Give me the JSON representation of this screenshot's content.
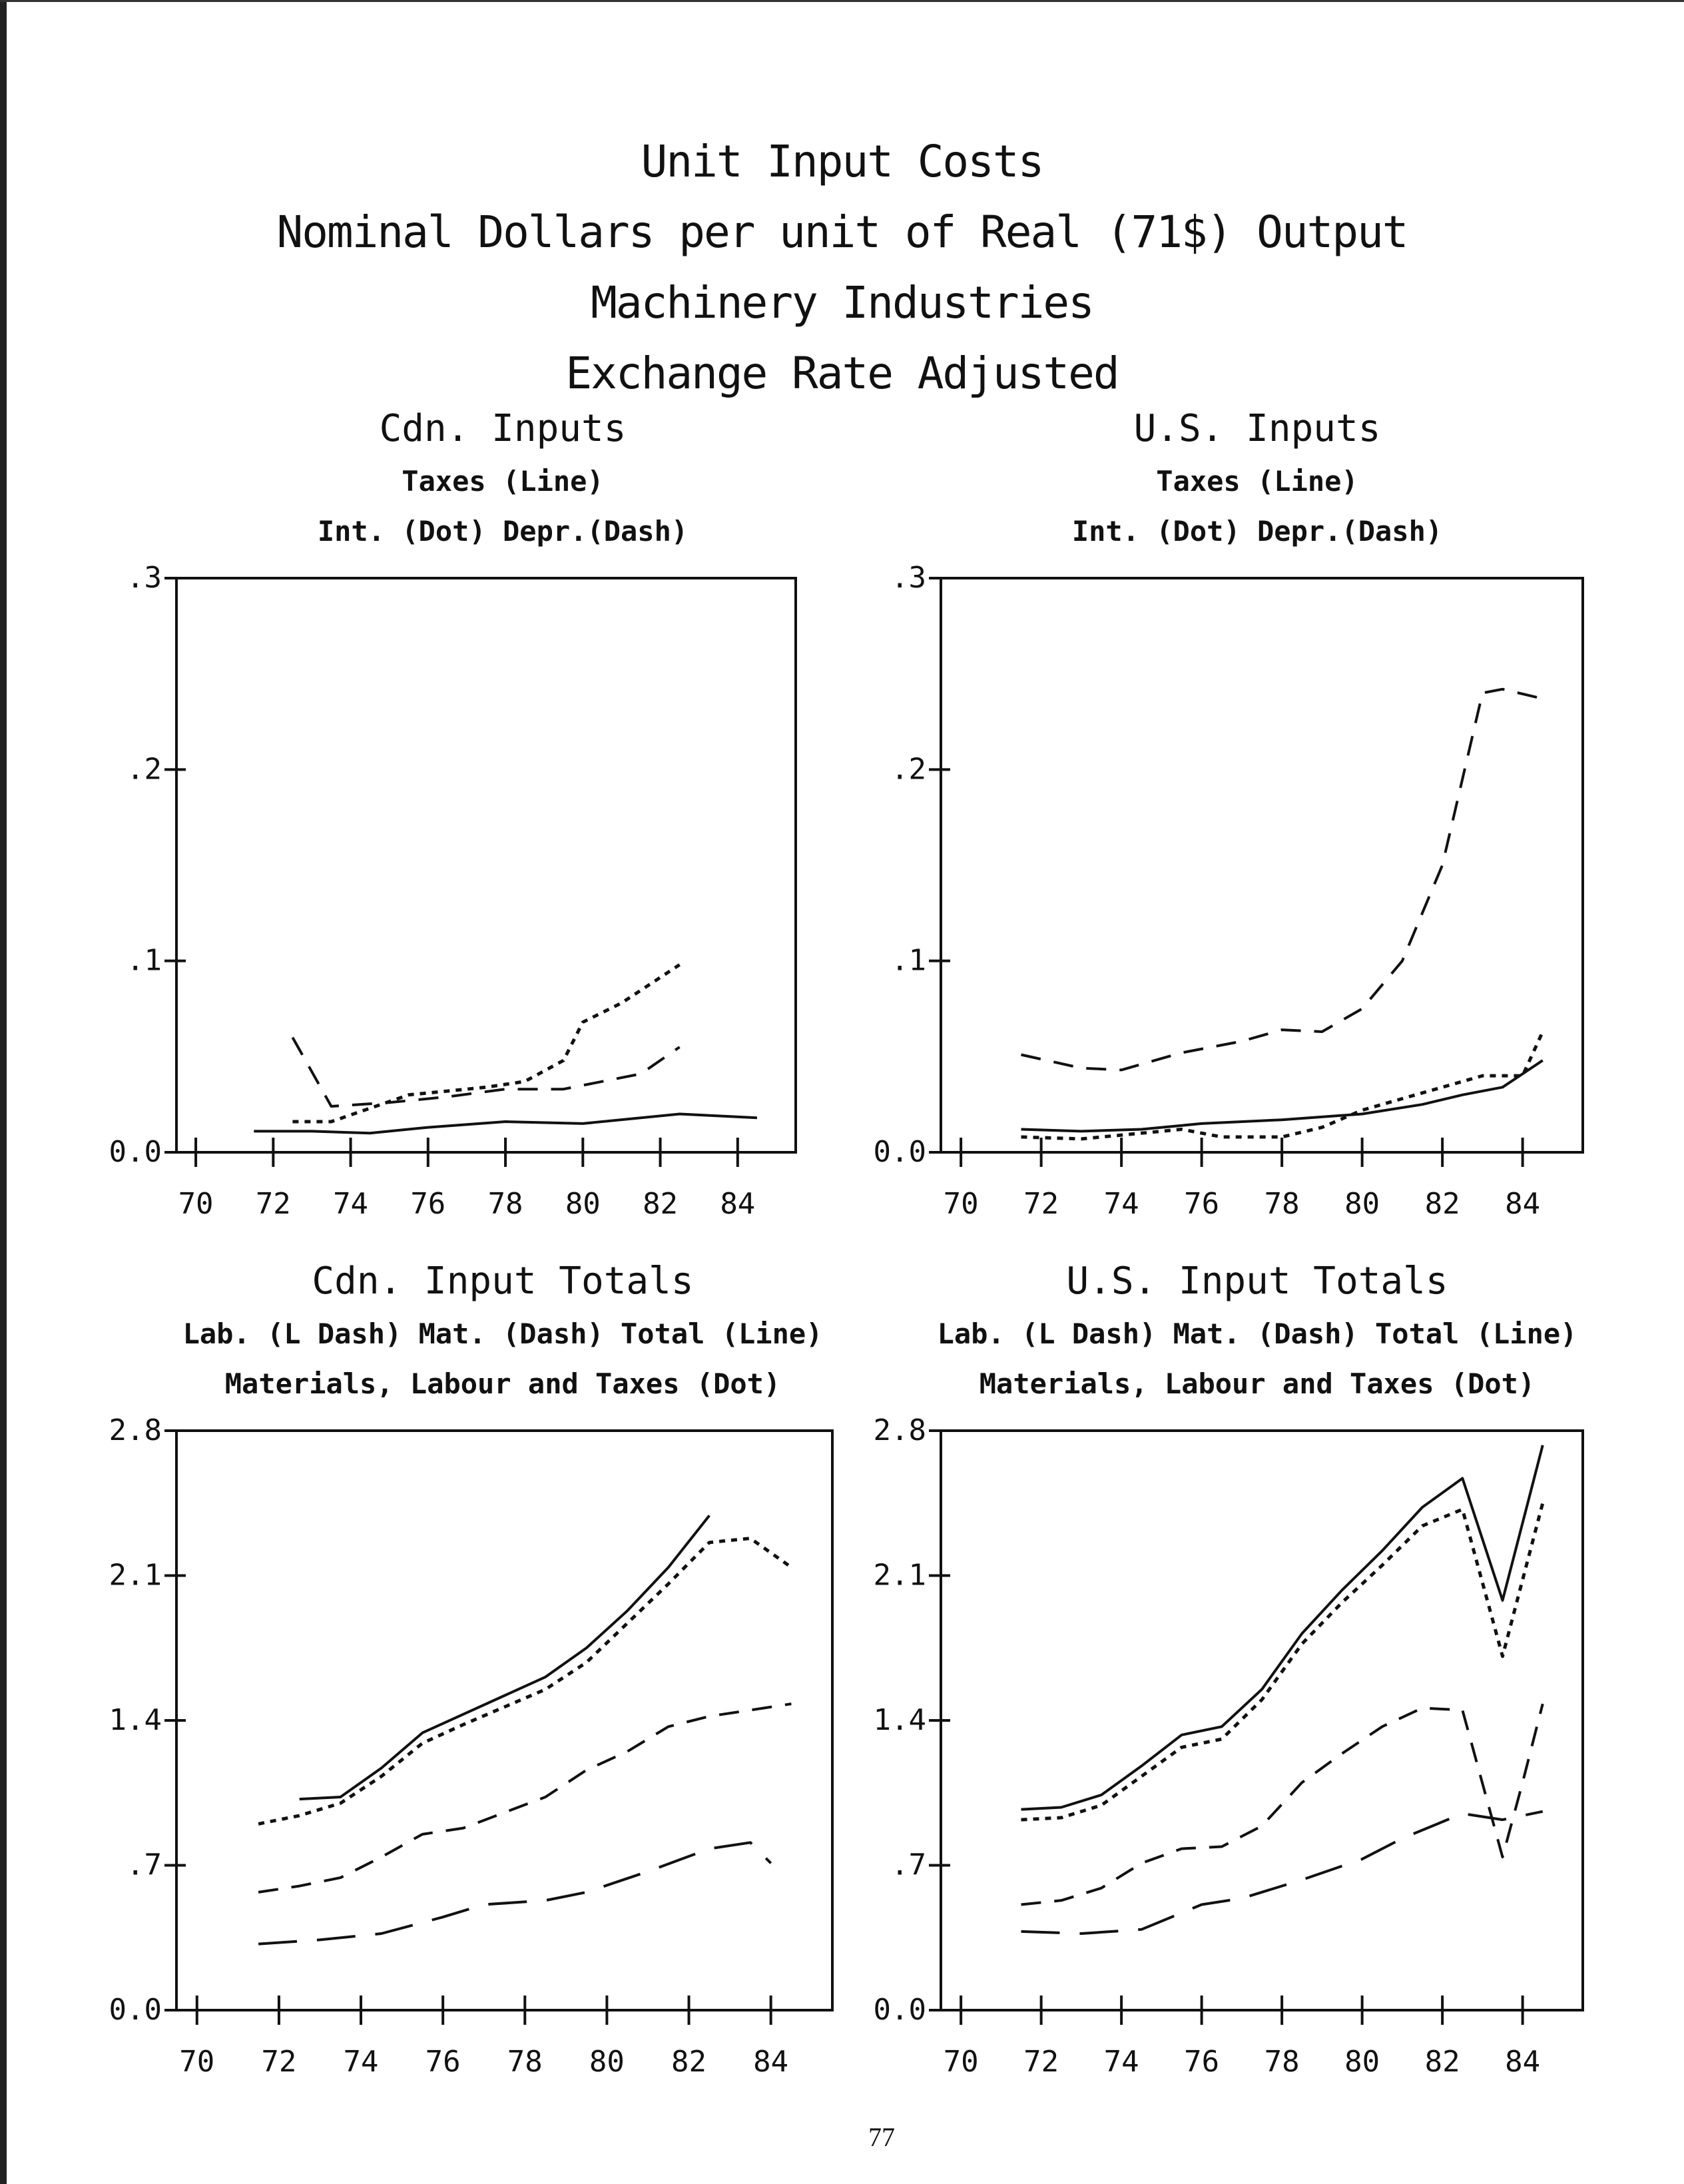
{
  "title_lines": [
    "Unit Input Costs",
    "Nominal Dollars per unit of Real (71$) Output",
    "Machinery Industries",
    "Exchange Rate Adjusted"
  ],
  "page_number": "77",
  "colors": {
    "ink": "#111111"
  },
  "chart_data": [
    {
      "type": "line",
      "title": "Cdn. Inputs",
      "legend_lines": [
        "Taxes (Line)",
        "Int. (Dot)      Depr.(Dash)"
      ],
      "xlabel": "",
      "ylabel": "",
      "xlim": [
        69.5,
        85.5
      ],
      "ylim": [
        0,
        0.3
      ],
      "xticks": [
        "70",
        "72",
        "74",
        "76",
        "78",
        "80",
        "82",
        "84"
      ],
      "yticks": [
        "0.0",
        ".1",
        ".2",
        ".3"
      ],
      "series": [
        {
          "name": "Taxes",
          "style": "solid",
          "x": [
            71.5,
            73,
            74.5,
            76,
            78,
            80,
            82.5,
            84.5
          ],
          "y": [
            0.011,
            0.011,
            0.01,
            0.013,
            0.016,
            0.015,
            0.02,
            0.018
          ]
        },
        {
          "name": "Int.",
          "style": "dot",
          "x": [
            72.5,
            73.5,
            74.5,
            75.5,
            76.5,
            77.5,
            78.5,
            79.5,
            80,
            81,
            82.5
          ],
          "y": [
            0.016,
            0.016,
            0.023,
            0.03,
            0.032,
            0.034,
            0.037,
            0.048,
            0.068,
            0.078,
            0.098
          ]
        },
        {
          "name": "Depr.",
          "style": "dash",
          "x": [
            72.5,
            73.5,
            75,
            76.5,
            78,
            79.5,
            81.5,
            82.5
          ],
          "y": [
            0.06,
            0.024,
            0.026,
            0.029,
            0.033,
            0.033,
            0.041,
            0.055
          ]
        }
      ]
    },
    {
      "type": "line",
      "title": "U.S. Inputs",
      "legend_lines": [
        "Taxes (Line)",
        "Int. (Dot)      Depr.(Dash)"
      ],
      "xlabel": "",
      "ylabel": "",
      "xlim": [
        69.5,
        85.5
      ],
      "ylim": [
        0,
        0.3
      ],
      "xticks": [
        "70",
        "72",
        "74",
        "76",
        "78",
        "80",
        "82",
        "84"
      ],
      "yticks": [
        "0.0",
        ".1",
        ".2",
        ".3"
      ],
      "series": [
        {
          "name": "Taxes",
          "style": "solid",
          "x": [
            71.5,
            73,
            74.5,
            76,
            78,
            80,
            81.5,
            82.5,
            83.5,
            84.5
          ],
          "y": [
            0.012,
            0.011,
            0.012,
            0.015,
            0.017,
            0.02,
            0.025,
            0.03,
            0.034,
            0.048
          ]
        },
        {
          "name": "Int.",
          "style": "dot",
          "x": [
            71.5,
            73,
            74.5,
            75.5,
            76.5,
            78,
            79,
            80,
            81,
            82,
            83,
            84,
            84.5
          ],
          "y": [
            0.008,
            0.007,
            0.01,
            0.012,
            0.008,
            0.008,
            0.013,
            0.022,
            0.028,
            0.034,
            0.04,
            0.04,
            0.063
          ]
        },
        {
          "name": "Depr.",
          "style": "dash",
          "x": [
            71.5,
            73,
            74,
            75.5,
            77,
            78,
            79,
            80,
            81,
            82,
            83,
            83.5,
            84.5
          ],
          "y": [
            0.051,
            0.044,
            0.043,
            0.052,
            0.058,
            0.064,
            0.063,
            0.075,
            0.1,
            0.15,
            0.24,
            0.242,
            0.237
          ]
        }
      ]
    },
    {
      "type": "line",
      "title": "Cdn. Input Totals",
      "legend_lines": [
        "Lab. (L Dash)    Mat. (Dash)    Total (Line)",
        "Materials, Labour and Taxes (Dot)"
      ],
      "xlabel": "",
      "ylabel": "",
      "xlim": [
        69.5,
        85.5
      ],
      "ylim": [
        0,
        2.8
      ],
      "xticks": [
        "70",
        "72",
        "74",
        "76",
        "78",
        "80",
        "82",
        "84"
      ],
      "yticks": [
        "0.0",
        ".7",
        "1.4",
        "2.1",
        "2.8"
      ],
      "series": [
        {
          "name": "Total",
          "style": "solid",
          "x": [
            72.5,
            73.5,
            74.5,
            75.5,
            76.5,
            78.5,
            79.5,
            80.5,
            81.5,
            82.5
          ],
          "y": [
            1.02,
            1.03,
            1.17,
            1.34,
            1.43,
            1.61,
            1.75,
            1.93,
            2.14,
            2.39
          ]
        },
        {
          "name": "Materials, Labour and Taxes",
          "style": "dot",
          "x": [
            71.5,
            72.5,
            73.5,
            74.5,
            75.5,
            76.5,
            78.5,
            79.5,
            80.5,
            81.5,
            82.5,
            83.5,
            84.5
          ],
          "y": [
            0.9,
            0.94,
            1.0,
            1.13,
            1.29,
            1.38,
            1.55,
            1.68,
            1.87,
            2.06,
            2.26,
            2.28,
            2.14
          ]
        },
        {
          "name": "Mat.",
          "style": "dash",
          "x": [
            71.5,
            72.5,
            73.5,
            74.5,
            75.5,
            76.5,
            78.5,
            79.5,
            80.5,
            81.5,
            82.5,
            83.5,
            84.5
          ],
          "y": [
            0.57,
            0.6,
            0.64,
            0.74,
            0.85,
            0.88,
            1.03,
            1.16,
            1.25,
            1.37,
            1.42,
            1.45,
            1.48
          ]
        },
        {
          "name": "Lab.",
          "style": "ldash",
          "x": [
            71.5,
            73,
            74.5,
            76,
            77,
            78.5,
            79.5,
            81,
            82.5,
            83.5,
            84
          ],
          "y": [
            0.32,
            0.34,
            0.37,
            0.45,
            0.51,
            0.53,
            0.57,
            0.67,
            0.78,
            0.81,
            0.71
          ]
        }
      ]
    },
    {
      "type": "line",
      "title": "U.S. Input Totals",
      "legend_lines": [
        "Lab. (L Dash)    Mat. (Dash)    Total (Line)",
        "Materials, Labour and Taxes (Dot)"
      ],
      "xlabel": "",
      "ylabel": "",
      "xlim": [
        69.5,
        85.5
      ],
      "ylim": [
        0,
        2.8
      ],
      "xticks": [
        "70",
        "72",
        "74",
        "76",
        "78",
        "80",
        "82",
        "84"
      ],
      "yticks": [
        "0.0",
        ".7",
        "1.4",
        "2.1",
        "2.8"
      ],
      "series": [
        {
          "name": "Total",
          "style": "solid",
          "x": [
            71.5,
            72.5,
            73.5,
            74.5,
            75.5,
            76.5,
            77.5,
            78.5,
            79.5,
            80.5,
            81.5,
            82.5,
            83.5,
            84.5
          ],
          "y": [
            0.97,
            0.98,
            1.04,
            1.18,
            1.33,
            1.37,
            1.55,
            1.82,
            2.03,
            2.22,
            2.43,
            2.57,
            1.98,
            2.73
          ]
        },
        {
          "name": "Materials, Labour and Taxes",
          "style": "dot",
          "x": [
            71.5,
            72.5,
            73.5,
            74.5,
            75.5,
            76.5,
            77.5,
            78.5,
            79.5,
            80.5,
            81.5,
            82.5,
            83.5,
            84.5
          ],
          "y": [
            0.92,
            0.93,
            0.99,
            1.13,
            1.27,
            1.31,
            1.5,
            1.77,
            1.97,
            2.15,
            2.34,
            2.42,
            1.71,
            2.45
          ]
        },
        {
          "name": "Mat.",
          "style": "dash",
          "x": [
            71.5,
            72.5,
            73.5,
            74.5,
            75.5,
            76.5,
            77.5,
            78.5,
            79.5,
            80.5,
            81.5,
            82.5,
            83.5,
            84,
            84.5
          ],
          "y": [
            0.51,
            0.53,
            0.59,
            0.71,
            0.78,
            0.79,
            0.89,
            1.1,
            1.24,
            1.37,
            1.46,
            1.45,
            0.74,
            1.1,
            1.48
          ]
        },
        {
          "name": "Lab.",
          "style": "ldash",
          "x": [
            71.5,
            73,
            74.5,
            76,
            77,
            78.5,
            80,
            81,
            82.5,
            83.5,
            84.5
          ],
          "y": [
            0.38,
            0.37,
            0.39,
            0.51,
            0.54,
            0.63,
            0.73,
            0.83,
            0.95,
            0.92,
            0.96
          ]
        }
      ]
    }
  ]
}
